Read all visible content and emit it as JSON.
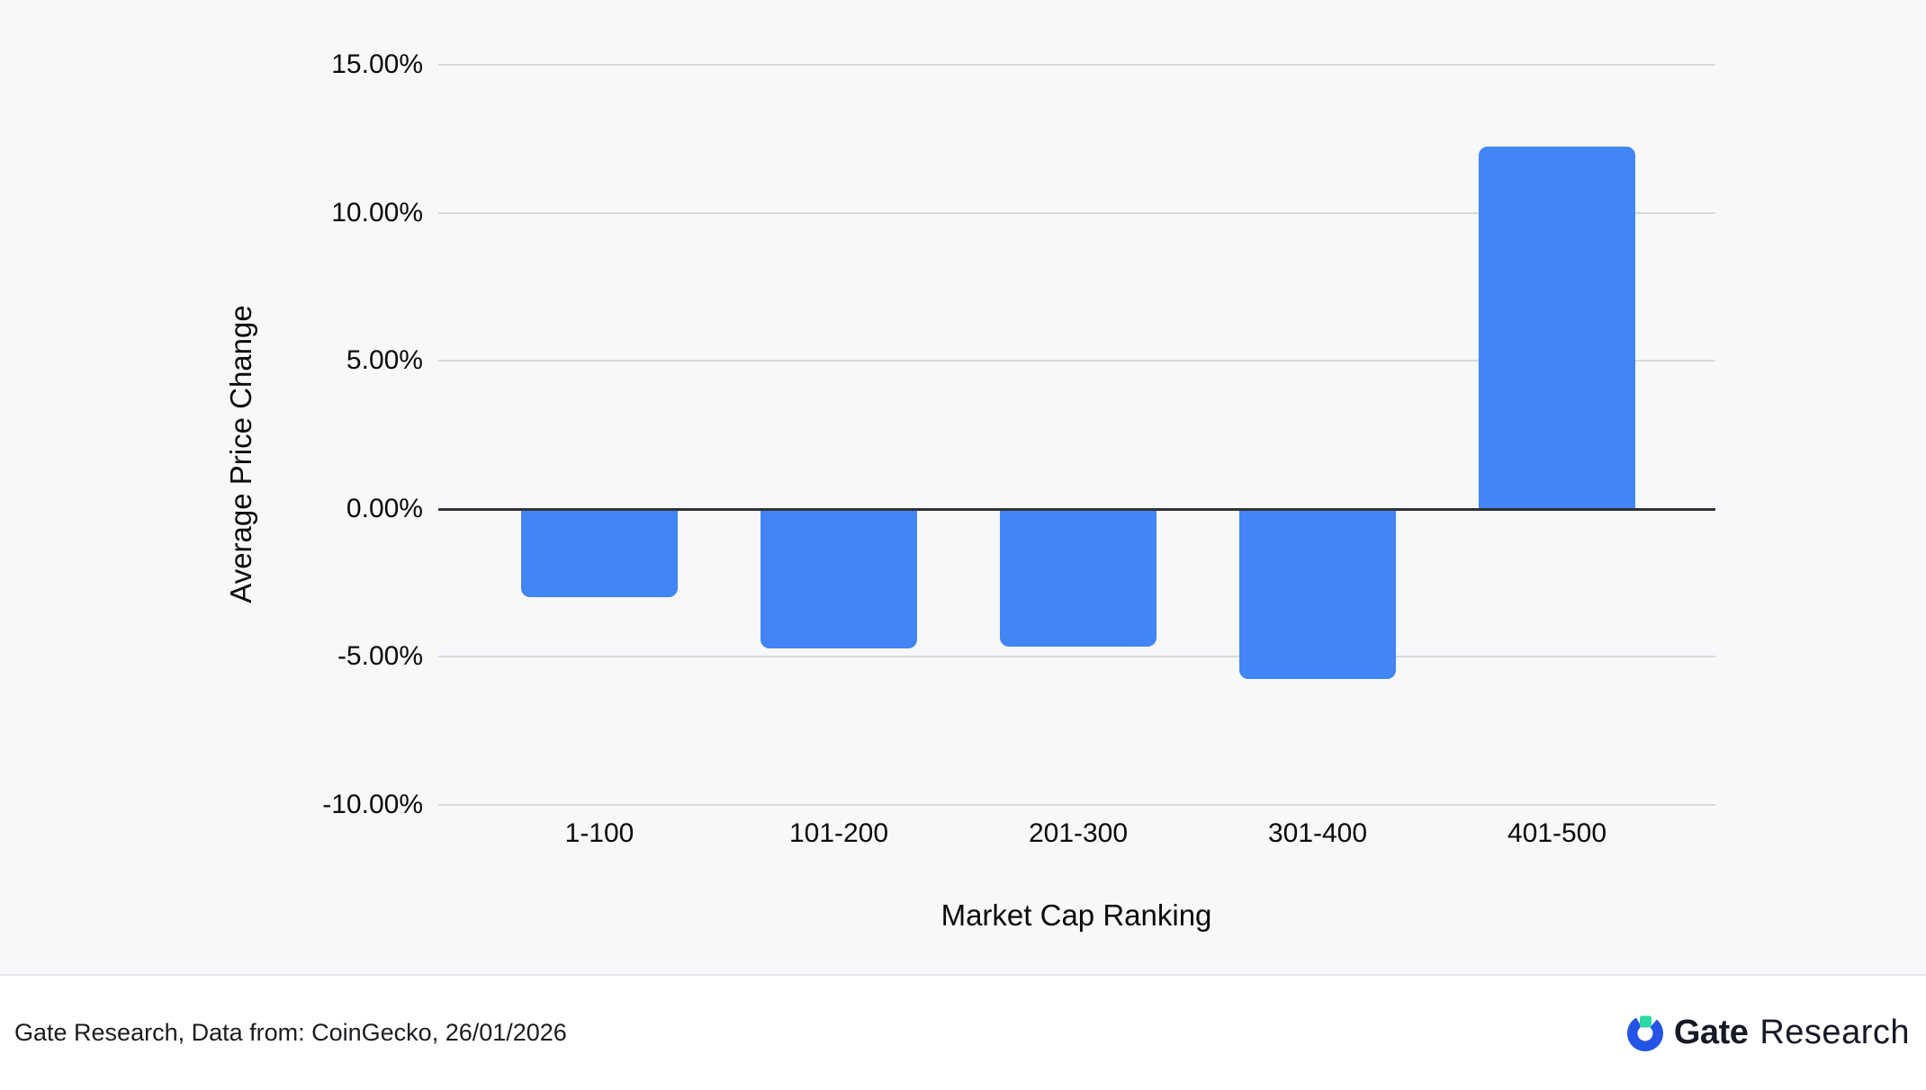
{
  "chart_data": {
    "type": "bar",
    "categories": [
      "1-100",
      "101-200",
      "201-300",
      "301-400",
      "401-500"
    ],
    "values": [
      -2.97,
      -4.72,
      -4.64,
      -5.76,
      12.24
    ],
    "title": "",
    "xlabel": "Market Cap Ranking",
    "ylabel": "Average Price Change",
    "ylim": [
      -10,
      15
    ],
    "ytick_step": 5,
    "ytick_suffix": "%",
    "ytick_decimals": 2,
    "grid": true,
    "legend": "none",
    "bar_color": "#4285F4",
    "gridline_color": "#d9d9d9",
    "zeroline_color": "#303236",
    "background_color": "#f7f8fa"
  },
  "footer": {
    "source_text": "Gate Research, Data from: CoinGecko, 26/01/2026",
    "logo_gate": "Gate",
    "logo_research": "Research",
    "brand_blue": "#2354E6",
    "brand_green": "#2ED8A3",
    "logo_text_color": "#171A26"
  }
}
